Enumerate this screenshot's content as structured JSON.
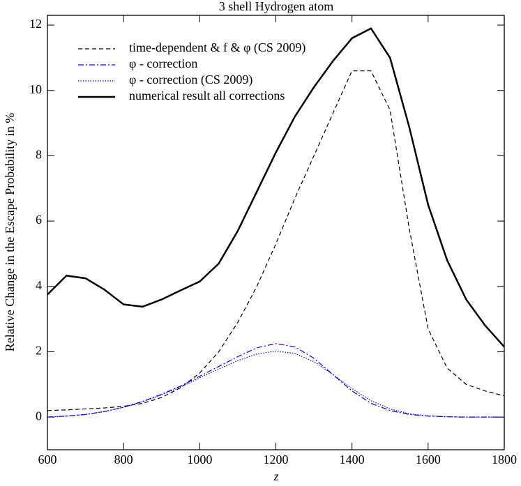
{
  "chart_data": {
    "type": "line",
    "title": "3 shell Hydrogen atom",
    "xlabel": "z",
    "ylabel": "Relative Change in the Escape Probability in %",
    "x": [
      600,
      650,
      700,
      750,
      800,
      850,
      900,
      950,
      1000,
      1050,
      1100,
      1150,
      1200,
      1250,
      1300,
      1350,
      1400,
      1450,
      1500,
      1550,
      1600,
      1650,
      1700,
      1750,
      1800
    ],
    "series": [
      {
        "name": "time-dependent & f & φ (CS 2009)",
        "color": "#000000",
        "style": "dashed",
        "values": [
          0.2,
          0.22,
          0.25,
          0.28,
          0.33,
          0.42,
          0.6,
          0.9,
          1.35,
          2.0,
          2.9,
          4.0,
          5.3,
          6.7,
          8.0,
          9.3,
          10.6,
          10.6,
          9.4,
          5.8,
          2.7,
          1.5,
          1.0,
          0.8,
          0.65
        ]
      },
      {
        "name": "φ - correction",
        "color": "#0000ff",
        "style": "dashdot",
        "values": [
          0.0,
          0.03,
          0.08,
          0.17,
          0.3,
          0.48,
          0.7,
          0.95,
          1.25,
          1.55,
          1.85,
          2.12,
          2.25,
          2.15,
          1.8,
          1.3,
          0.8,
          0.42,
          0.2,
          0.08,
          0.03,
          0.01,
          0,
          0,
          0
        ]
      },
      {
        "name": "φ - correction (CS 2009)",
        "color": "#0000ff",
        "style": "dotted",
        "values": [
          0.0,
          0.03,
          0.08,
          0.17,
          0.3,
          0.47,
          0.68,
          0.92,
          1.2,
          1.47,
          1.73,
          1.93,
          2.02,
          1.95,
          1.7,
          1.3,
          0.87,
          0.5,
          0.25,
          0.1,
          0.04,
          0.01,
          0,
          0,
          0
        ]
      },
      {
        "name": "numerical result all corrections",
        "color": "#000000",
        "style": "solid",
        "values": [
          3.75,
          4.33,
          4.25,
          3.9,
          3.45,
          3.38,
          3.6,
          3.88,
          4.15,
          4.7,
          5.7,
          6.9,
          8.1,
          9.2,
          10.1,
          10.9,
          11.6,
          11.9,
          11.0,
          8.9,
          6.5,
          4.8,
          3.6,
          2.8,
          2.15
        ]
      }
    ],
    "xlim": [
      600,
      1800
    ],
    "xticks": [
      600,
      800,
      1000,
      1200,
      1400,
      1600,
      1800
    ],
    "ylim": [
      -1,
      12.3
    ],
    "yticks": [
      0,
      2,
      4,
      6,
      8,
      10,
      12
    ],
    "legend": "upper left",
    "grid": false
  }
}
